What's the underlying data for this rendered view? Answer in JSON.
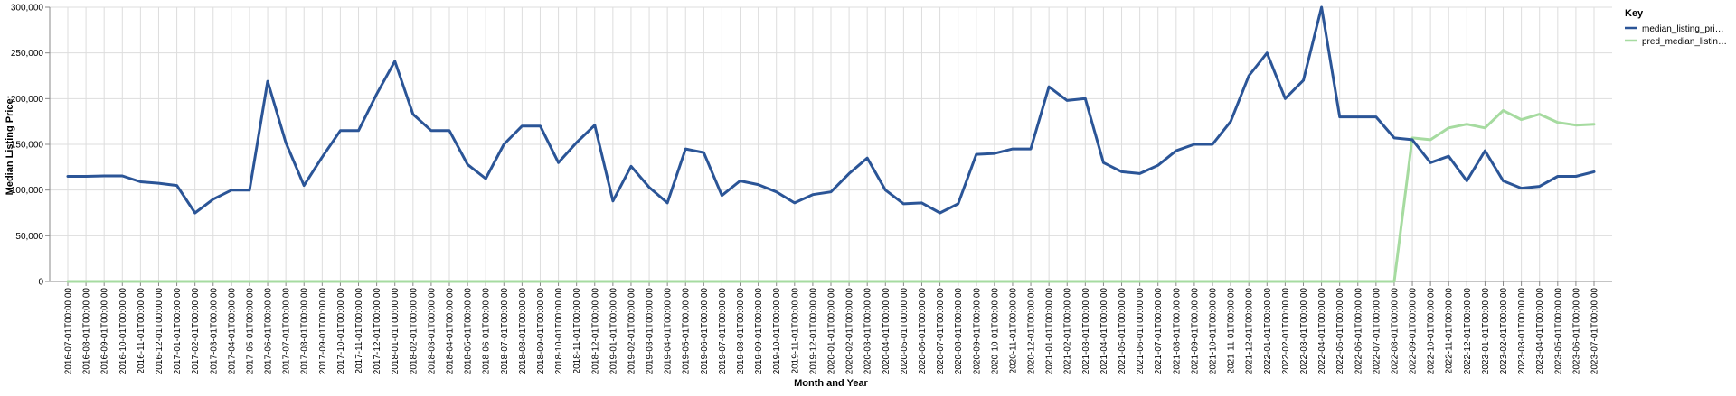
{
  "chart_data": {
    "type": "line",
    "title": "",
    "xlabel": "Month and Year",
    "ylabel": "Median Listing Price:",
    "ylim": [
      0,
      300000
    ],
    "yticks": [
      "0",
      "50,000",
      "100,000",
      "150,000",
      "200,000",
      "250,000",
      "300,000"
    ],
    "ytick_values": [
      0,
      50000,
      100000,
      150000,
      200000,
      250000,
      300000
    ],
    "grid": true,
    "legend": {
      "title": "Key",
      "position": "top-right",
      "entries": [
        "median_listing_pri…",
        "pred_median_listin…"
      ]
    },
    "x": [
      "2016-07-01T00:00:00",
      "2016-08-01T00:00:00",
      "2016-09-01T00:00:00",
      "2016-10-01T00:00:00",
      "2016-11-01T00:00:00",
      "2016-12-01T00:00:00",
      "2017-01-01T00:00:00",
      "2017-02-01T00:00:00",
      "2017-03-01T00:00:00",
      "2017-04-01T00:00:00",
      "2017-05-01T00:00:00",
      "2017-06-01T00:00:00",
      "2017-07-01T00:00:00",
      "2017-08-01T00:00:00",
      "2017-09-01T00:00:00",
      "2017-10-01T00:00:00",
      "2017-11-01T00:00:00",
      "2017-12-01T00:00:00",
      "2018-01-01T00:00:00",
      "2018-02-01T00:00:00",
      "2018-03-01T00:00:00",
      "2018-04-01T00:00:00",
      "2018-05-01T00:00:00",
      "2018-06-01T00:00:00",
      "2018-07-01T00:00:00",
      "2018-08-01T00:00:00",
      "2018-09-01T00:00:00",
      "2018-10-01T00:00:00",
      "2018-11-01T00:00:00",
      "2018-12-01T00:00:00",
      "2019-01-01T00:00:00",
      "2019-02-01T00:00:00",
      "2019-03-01T00:00:00",
      "2019-04-01T00:00:00",
      "2019-05-01T00:00:00",
      "2019-06-01T00:00:00",
      "2019-07-01T00:00:00",
      "2019-08-01T00:00:00",
      "2019-09-01T00:00:00",
      "2019-10-01T00:00:00",
      "2019-11-01T00:00:00",
      "2019-12-01T00:00:00",
      "2020-01-01T00:00:00",
      "2020-02-01T00:00:00",
      "2020-03-01T00:00:00",
      "2020-04-01T00:00:00",
      "2020-05-01T00:00:00",
      "2020-06-01T00:00:00",
      "2020-07-01T00:00:00",
      "2020-08-01T00:00:00",
      "2020-09-01T00:00:00",
      "2020-10-01T00:00:00",
      "2020-11-01T00:00:00",
      "2020-12-01T00:00:00",
      "2021-01-01T00:00:00",
      "2021-02-01T00:00:00",
      "2021-03-01T00:00:00",
      "2021-04-01T00:00:00",
      "2021-05-01T00:00:00",
      "2021-06-01T00:00:00",
      "2021-07-01T00:00:00",
      "2021-08-01T00:00:00",
      "2021-09-01T00:00:00",
      "2021-10-01T00:00:00",
      "2021-11-01T00:00:00",
      "2021-12-01T00:00:00",
      "2022-01-01T00:00:00",
      "2022-02-01T00:00:00",
      "2022-03-01T00:00:00",
      "2022-04-01T00:00:00",
      "2022-05-01T00:00:00",
      "2022-06-01T00:00:00",
      "2022-07-01T00:00:00",
      "2022-08-01T00:00:00",
      "2022-09-01T00:00:00",
      "2022-10-01T00:00:00",
      "2022-11-01T00:00:00",
      "2022-12-01T00:00:00",
      "2023-01-01T00:00:00",
      "2023-02-01T00:00:00",
      "2023-03-01T00:00:00",
      "2023-04-01T00:00:00",
      "2023-05-01T00:00:00",
      "2023-06-01T00:00:00",
      "2023-07-01T00:00:00"
    ],
    "series": [
      {
        "name": "median_listing_pri…",
        "color": "#2b5597",
        "values": [
          115000,
          115000,
          115500,
          115500,
          109000,
          107500,
          105000,
          75000,
          90000,
          99900,
          99900,
          219000,
          152000,
          105000,
          136000,
          165000,
          165000,
          205000,
          241000,
          183000,
          165000,
          165000,
          128000,
          112500,
          150000,
          170000,
          170000,
          130000,
          152000,
          171000,
          88000,
          126000,
          103000,
          86000,
          145000,
          141000,
          94000,
          110000,
          106000,
          98000,
          86000,
          95000,
          98000,
          118000,
          135000,
          100000,
          85000,
          86000,
          75000,
          85000,
          139000,
          140000,
          145000,
          145000,
          213000,
          198000,
          200000,
          130000,
          120000,
          118000,
          127000,
          143000,
          150000,
          150000,
          175000,
          225000,
          250000,
          200000,
          220000,
          300000,
          180000,
          180000,
          180000,
          157000,
          155000,
          130000,
          137000,
          110000,
          143000,
          110000,
          102000,
          104000,
          115000,
          115000,
          120000
        ]
      },
      {
        "name": "pred_median_listin…",
        "color": "#a6dba0",
        "values": [
          0,
          0,
          0,
          0,
          0,
          0,
          0,
          0,
          0,
          0,
          0,
          0,
          0,
          0,
          0,
          0,
          0,
          0,
          0,
          0,
          0,
          0,
          0,
          0,
          0,
          0,
          0,
          0,
          0,
          0,
          0,
          0,
          0,
          0,
          0,
          0,
          0,
          0,
          0,
          0,
          0,
          0,
          0,
          0,
          0,
          0,
          0,
          0,
          0,
          0,
          0,
          0,
          0,
          0,
          0,
          0,
          0,
          0,
          0,
          0,
          0,
          0,
          0,
          0,
          0,
          0,
          0,
          0,
          0,
          0,
          0,
          0,
          0,
          0,
          157000,
          155000,
          168000,
          172000,
          168000,
          187000,
          177000,
          183000,
          174000,
          171000,
          172000
        ]
      }
    ]
  }
}
